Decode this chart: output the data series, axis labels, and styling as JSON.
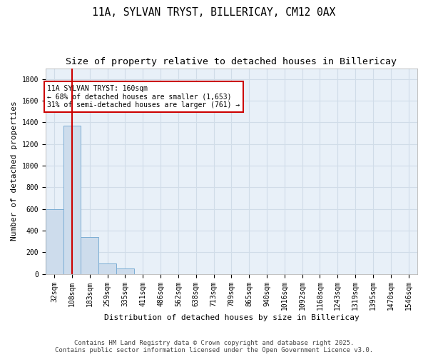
{
  "title1": "11A, SYLVAN TRYST, BILLERICAY, CM12 0AX",
  "title2": "Size of property relative to detached houses in Billericay",
  "xlabel": "Distribution of detached houses by size in Billericay",
  "ylabel": "Number of detached properties",
  "categories": [
    "32sqm",
    "108sqm",
    "183sqm",
    "259sqm",
    "335sqm",
    "411sqm",
    "486sqm",
    "562sqm",
    "638sqm",
    "713sqm",
    "789sqm",
    "865sqm",
    "940sqm",
    "1016sqm",
    "1092sqm",
    "1168sqm",
    "1243sqm",
    "1319sqm",
    "1395sqm",
    "1470sqm",
    "1546sqm"
  ],
  "values": [
    600,
    1370,
    340,
    95,
    50,
    0,
    0,
    0,
    0,
    0,
    0,
    0,
    0,
    0,
    0,
    0,
    0,
    0,
    0,
    0,
    0
  ],
  "bar_color": "#cddcec",
  "bar_edge_color": "#7badd4",
  "vline_color": "#cc0000",
  "vline_x": 1.0,
  "annotation_text": "11A SYLVAN TRYST: 160sqm\n← 68% of detached houses are smaller (1,653)\n31% of semi-detached houses are larger (761) →",
  "annotation_box_facecolor": "#ffffff",
  "annotation_box_edgecolor": "#cc0000",
  "ylim": [
    0,
    1900
  ],
  "yticks": [
    0,
    200,
    400,
    600,
    800,
    1000,
    1200,
    1400,
    1600,
    1800
  ],
  "background_color": "#e8f0f8",
  "grid_color": "#d0dce8",
  "figure_facecolor": "#ffffff",
  "footer1": "Contains HM Land Registry data © Crown copyright and database right 2025.",
  "footer2": "Contains public sector information licensed under the Open Government Licence v3.0.",
  "title1_fontsize": 10.5,
  "title2_fontsize": 9.5,
  "axis_label_fontsize": 8,
  "tick_fontsize": 7,
  "annotation_fontsize": 7,
  "footer_fontsize": 6.5
}
